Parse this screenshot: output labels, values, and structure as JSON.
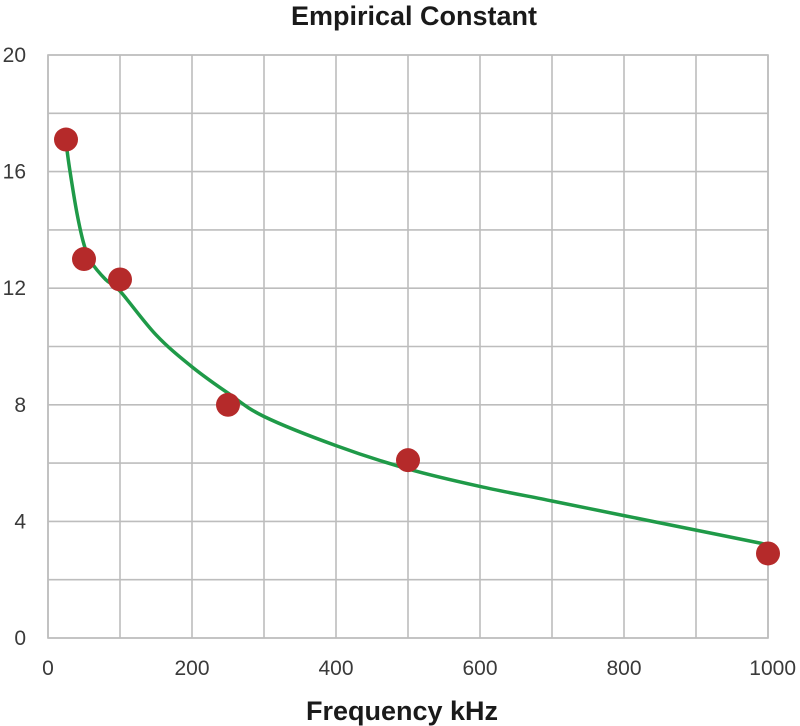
{
  "chart_data": {
    "type": "scatter",
    "title": "Empirical Constant",
    "xlabel": "Frequency kHz",
    "ylabel": "",
    "xlim": [
      0,
      1000
    ],
    "ylim": [
      0,
      20
    ],
    "xticks": [
      0,
      200,
      400,
      600,
      800,
      1000
    ],
    "yticks": [
      0,
      4,
      8,
      12,
      16,
      20
    ],
    "x_tick_labels": [
      "0",
      "200",
      "400",
      "600",
      "800",
      "1000"
    ],
    "y_tick_labels": [
      "0",
      "4",
      "8",
      "12",
      "16",
      "20"
    ],
    "x_minor_gridlines": [
      100,
      300,
      500,
      700,
      900
    ],
    "y_minor_gridlines": [
      2,
      6,
      10,
      14,
      18
    ],
    "grid": true,
    "legend": "none",
    "series": [
      {
        "type": "scatter",
        "color": "#b52a2a",
        "points": [
          {
            "x": 25,
            "y": 17.1
          },
          {
            "x": 50,
            "y": 13.0
          },
          {
            "x": 100,
            "y": 12.3
          },
          {
            "x": 250,
            "y": 8.0
          },
          {
            "x": 500,
            "y": 6.1
          },
          {
            "x": 1000,
            "y": 2.9
          }
        ]
      },
      {
        "type": "line",
        "color": "#1f9a48",
        "points": [
          {
            "x": 25,
            "y": 17.0
          },
          {
            "x": 30,
            "y": 16.1
          },
          {
            "x": 40,
            "y": 14.6
          },
          {
            "x": 50,
            "y": 13.5
          },
          {
            "x": 60,
            "y": 12.9
          },
          {
            "x": 80,
            "y": 12.3
          },
          {
            "x": 100,
            "y": 11.9
          },
          {
            "x": 150,
            "y": 10.4
          },
          {
            "x": 200,
            "y": 9.3
          },
          {
            "x": 250,
            "y": 8.4
          },
          {
            "x": 300,
            "y": 7.6
          },
          {
            "x": 400,
            "y": 6.6
          },
          {
            "x": 500,
            "y": 5.8
          },
          {
            "x": 600,
            "y": 5.2
          },
          {
            "x": 700,
            "y": 4.7
          },
          {
            "x": 800,
            "y": 4.2
          },
          {
            "x": 900,
            "y": 3.7
          },
          {
            "x": 1000,
            "y": 3.2
          }
        ]
      }
    ]
  }
}
